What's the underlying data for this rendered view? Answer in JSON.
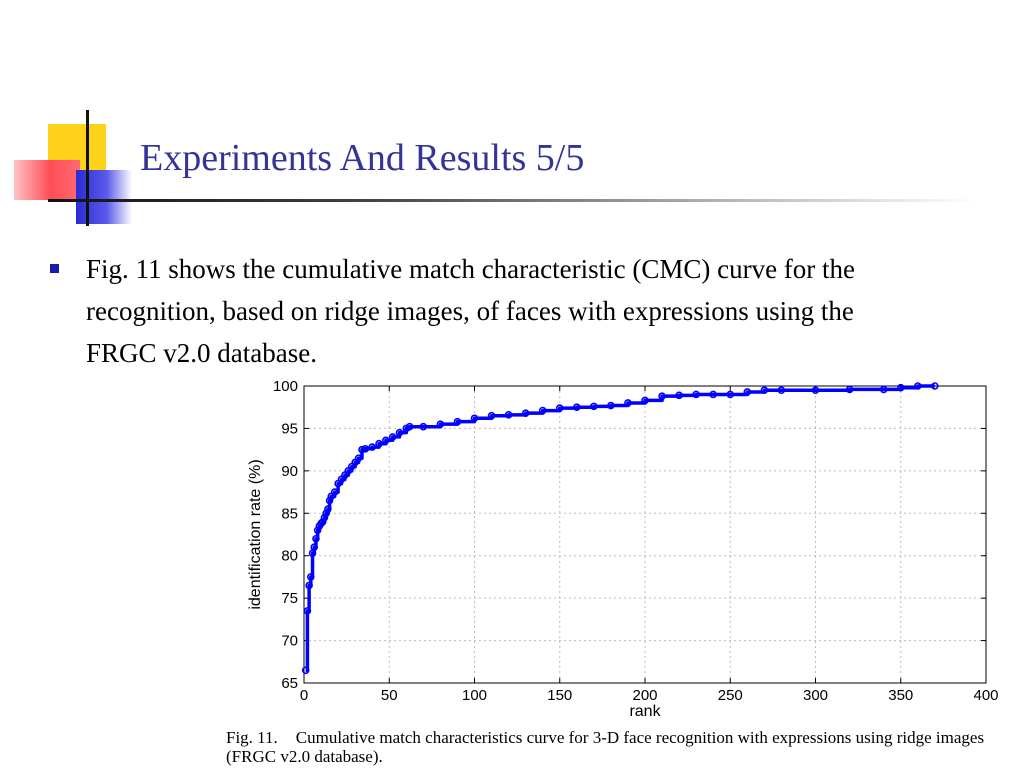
{
  "slide": {
    "title": "Experiments And Results 5/5",
    "bullet": "Fig. 11 shows the cumulative match characteristic (CMC) curve for the recognition, based on ridge images, of faces with expressions using the FRGC v2.0 database."
  },
  "caption": {
    "number": "Fig. 11.",
    "text": "Cumulative match characteristics curve for 3-D face recognition with expressions using ridge images (FRGC v2.0 database)."
  },
  "chart_data": {
    "type": "line",
    "title": "",
    "xlabel": "rank",
    "ylabel": "identification rate (%)",
    "xlim": [
      0,
      400
    ],
    "ylim": [
      65,
      100
    ],
    "xticks": [
      0,
      50,
      100,
      150,
      200,
      250,
      300,
      350,
      400
    ],
    "yticks": [
      65,
      70,
      75,
      80,
      85,
      90,
      95,
      100
    ],
    "grid": true,
    "line_color": "#0000ff",
    "marker": "circle",
    "series": [
      {
        "x": [
          1,
          2,
          3,
          4,
          5,
          6,
          7,
          8,
          9,
          10,
          11,
          12,
          13,
          14,
          15,
          16,
          18,
          20,
          22,
          24,
          26,
          28,
          30,
          32,
          34,
          36,
          40,
          44,
          48,
          52,
          56,
          60,
          62,
          70,
          80,
          90,
          100,
          110,
          120,
          130,
          140,
          150,
          160,
          170,
          180,
          190,
          200,
          210,
          220,
          230,
          240,
          250,
          260,
          270,
          280,
          300,
          320,
          340,
          350,
          360,
          370
        ],
        "y": [
          66.5,
          73.5,
          76.5,
          77.5,
          80.3,
          81.0,
          82.0,
          83.0,
          83.5,
          83.8,
          84.0,
          84.5,
          85.0,
          85.5,
          86.5,
          87.0,
          87.5,
          88.5,
          89.0,
          89.5,
          90.0,
          90.5,
          91.0,
          91.5,
          92.5,
          92.6,
          92.8,
          93.2,
          93.6,
          94.0,
          94.5,
          95.0,
          95.2,
          95.2,
          95.5,
          95.8,
          96.2,
          96.5,
          96.6,
          96.8,
          97.1,
          97.4,
          97.5,
          97.6,
          97.7,
          98.0,
          98.3,
          98.8,
          98.9,
          99.0,
          99.0,
          99.0,
          99.3,
          99.5,
          99.5,
          99.5,
          99.6,
          99.6,
          99.8,
          100.0,
          100.0
        ]
      }
    ]
  }
}
